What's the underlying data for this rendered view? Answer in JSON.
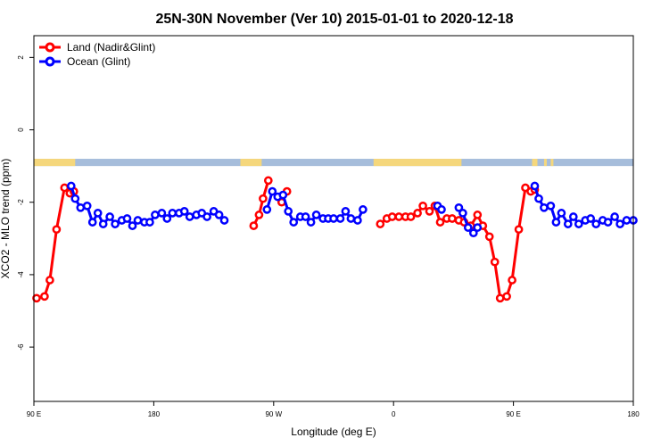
{
  "chart_data": {
    "type": "line",
    "title": "25N-30N November (Ver 10)   2015-01-01 to 2020-12-18",
    "xlabel": "Longitude (deg E)",
    "ylabel": "XCO2 - MLO trend (ppm)",
    "xlim": [
      90,
      540
    ],
    "ylim": [
      -7.5,
      2.6
    ],
    "x_ticks": [
      {
        "value": 90,
        "label": "90 E"
      },
      {
        "value": 180,
        "label": "180"
      },
      {
        "value": 270,
        "label": "90 W"
      },
      {
        "value": 360,
        "label": "0"
      },
      {
        "value": 450,
        "label": "90 E"
      },
      {
        "value": 540,
        "label": "180"
      }
    ],
    "y_ticks": [
      {
        "value": 2,
        "label": "2"
      },
      {
        "value": 0,
        "label": "0"
      },
      {
        "value": -2,
        "label": "-2"
      },
      {
        "value": -4,
        "label": "-4"
      },
      {
        "value": -6,
        "label": "-6"
      }
    ],
    "legend_position": "top-left",
    "land_ocean_strip": {
      "y_range": [
        -0.8,
        -1.0
      ],
      "ocean_color": "#A6BDDB",
      "land_color": "#F5D77C",
      "land_segments": [
        [
          90,
          121
        ],
        [
          245,
          261
        ],
        [
          345,
          411
        ],
        [
          464,
          468
        ],
        [
          473,
          475
        ],
        [
          478,
          480
        ]
      ]
    },
    "series": [
      {
        "name": "Land (Nadir&Glint)",
        "color": "#FF0000",
        "segments": [
          [
            [
              92,
              -4.65
            ],
            [
              98,
              -4.6
            ],
            [
              102,
              -4.15
            ],
            [
              107,
              -2.75
            ],
            [
              113,
              -1.6
            ],
            [
              117,
              -1.75
            ],
            [
              120,
              -1.7
            ]
          ],
          [
            [
              255,
              -2.65
            ],
            [
              259,
              -2.35
            ],
            [
              262,
              -1.9
            ],
            [
              266,
              -1.4
            ]
          ],
          [
            [
              276,
              -2.0
            ],
            [
              280,
              -1.7
            ]
          ],
          [
            [
              350,
              -2.6
            ],
            [
              355,
              -2.45
            ],
            [
              359,
              -2.4
            ],
            [
              364,
              -2.4
            ],
            [
              369,
              -2.4
            ],
            [
              373,
              -2.4
            ],
            [
              378,
              -2.3
            ],
            [
              382,
              -2.1
            ],
            [
              387,
              -2.25
            ],
            [
              391,
              -2.1
            ],
            [
              395,
              -2.55
            ],
            [
              400,
              -2.45
            ],
            [
              404,
              -2.45
            ],
            [
              409,
              -2.5
            ],
            [
              413,
              -2.55
            ],
            [
              418,
              -2.65
            ],
            [
              423,
              -2.35
            ],
            [
              427,
              -2.65
            ],
            [
              432,
              -2.95
            ],
            [
              436,
              -3.65
            ],
            [
              440,
              -4.65
            ],
            [
              445,
              -4.6
            ],
            [
              449,
              -4.15
            ],
            [
              454,
              -2.75
            ],
            [
              459,
              -1.6
            ],
            [
              463,
              -1.7
            ],
            [
              466,
              -1.65
            ]
          ]
        ]
      },
      {
        "name": "Ocean (Glint)",
        "color": "#0000FF",
        "segments": [
          [
            [
              118,
              -1.55
            ],
            [
              121,
              -1.9
            ],
            [
              125,
              -2.15
            ],
            [
              130,
              -2.1
            ],
            [
              134,
              -2.55
            ],
            [
              138,
              -2.3
            ],
            [
              142,
              -2.6
            ],
            [
              147,
              -2.4
            ],
            [
              151,
              -2.6
            ],
            [
              156,
              -2.5
            ],
            [
              160,
              -2.45
            ],
            [
              164,
              -2.65
            ],
            [
              168,
              -2.5
            ],
            [
              173,
              -2.55
            ],
            [
              177,
              -2.55
            ],
            [
              181,
              -2.35
            ],
            [
              186,
              -2.3
            ],
            [
              190,
              -2.45
            ],
            [
              194,
              -2.3
            ],
            [
              199,
              -2.3
            ],
            [
              203,
              -2.25
            ],
            [
              207,
              -2.4
            ],
            [
              212,
              -2.35
            ],
            [
              216,
              -2.3
            ],
            [
              220,
              -2.4
            ],
            [
              225,
              -2.25
            ],
            [
              229,
              -2.35
            ],
            [
              233,
              -2.5
            ]
          ],
          [
            [
              265,
              -2.2
            ],
            [
              269,
              -1.7
            ],
            [
              273,
              -1.85
            ],
            [
              277,
              -1.8
            ],
            [
              281,
              -2.25
            ],
            [
              285,
              -2.55
            ],
            [
              290,
              -2.4
            ],
            [
              294,
              -2.4
            ],
            [
              298,
              -2.55
            ],
            [
              302,
              -2.35
            ],
            [
              307,
              -2.45
            ],
            [
              311,
              -2.45
            ],
            [
              315,
              -2.45
            ],
            [
              320,
              -2.45
            ],
            [
              324,
              -2.25
            ],
            [
              328,
              -2.45
            ],
            [
              333,
              -2.5
            ],
            [
              337,
              -2.2
            ]
          ],
          [
            [
              393,
              -2.1
            ],
            [
              396,
              -2.2
            ]
          ],
          [
            [
              409,
              -2.15
            ],
            [
              412,
              -2.3
            ],
            [
              416,
              -2.7
            ],
            [
              420,
              -2.85
            ],
            [
              423,
              -2.7
            ]
          ],
          [
            [
              466,
              -1.55
            ],
            [
              469,
              -1.9
            ],
            [
              473,
              -2.15
            ],
            [
              478,
              -2.1
            ],
            [
              482,
              -2.55
            ],
            [
              486,
              -2.3
            ],
            [
              491,
              -2.6
            ],
            [
              495,
              -2.4
            ],
            [
              499,
              -2.6
            ],
            [
              504,
              -2.5
            ],
            [
              508,
              -2.45
            ],
            [
              512,
              -2.6
            ],
            [
              517,
              -2.5
            ],
            [
              521,
              -2.55
            ],
            [
              526,
              -2.4
            ],
            [
              530,
              -2.6
            ],
            [
              535,
              -2.5
            ],
            [
              540,
              -2.5
            ]
          ]
        ]
      }
    ]
  }
}
